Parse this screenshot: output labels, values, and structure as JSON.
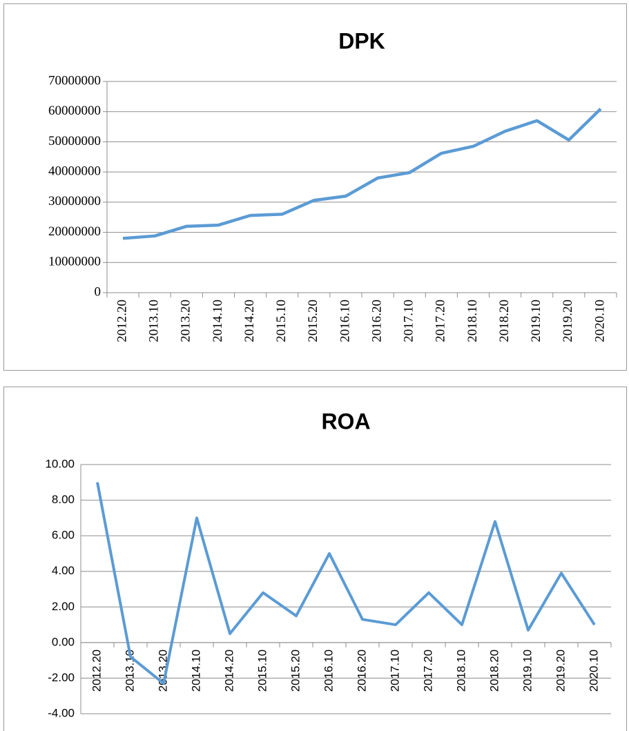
{
  "chart_data": [
    {
      "type": "line",
      "title": "DPK",
      "categories": [
        "2012.20",
        "2013.10",
        "2013.20",
        "2014.10",
        "2014.20",
        "2015.10",
        "2015.20",
        "2016.10",
        "2016.20",
        "2017.10",
        "2017.20",
        "2018.10",
        "2018.20",
        "2019.10",
        "2019.20",
        "2020.10"
      ],
      "values": [
        18000000,
        18800000,
        22000000,
        22400000,
        25600000,
        26000000,
        30600000,
        32000000,
        38000000,
        39800000,
        46200000,
        48500000,
        53500000,
        57000000,
        50600000,
        60900000
      ],
      "color": "#5b9bd5",
      "ylim": [
        0,
        70000000
      ],
      "yticks": [
        0,
        10000000,
        20000000,
        30000000,
        40000000,
        50000000,
        60000000,
        70000000
      ],
      "grid": true
    },
    {
      "type": "line",
      "title": "ROA",
      "categories": [
        "2012.20",
        "2013.10",
        "2013.20",
        "2014.10",
        "2014.20",
        "2015.10",
        "2015.20",
        "2016.10",
        "2016.20",
        "2017.10",
        "2017.20",
        "2018.10",
        "2018.20",
        "2019.10",
        "2019.20",
        "2020.10"
      ],
      "values": [
        9.0,
        -0.8,
        -2.3,
        7.0,
        0.5,
        2.8,
        1.5,
        5.0,
        1.3,
        1.0,
        2.8,
        1.0,
        6.8,
        0.7,
        3.9,
        1.0
      ],
      "color": "#5b9bd5",
      "ylim": [
        -4,
        10
      ],
      "yticks": [
        {
          "value": -4,
          "label": "-4.00"
        },
        {
          "value": -2,
          "label": "-2.00"
        },
        {
          "value": 0,
          "label": "0.00"
        },
        {
          "value": 2,
          "label": "2.00"
        },
        {
          "value": 4,
          "label": "4.00"
        },
        {
          "value": 6,
          "label": "6.00"
        },
        {
          "value": 8,
          "label": "8.00"
        },
        {
          "value": 10,
          "label": "10.00"
        }
      ],
      "grid": true
    }
  ]
}
